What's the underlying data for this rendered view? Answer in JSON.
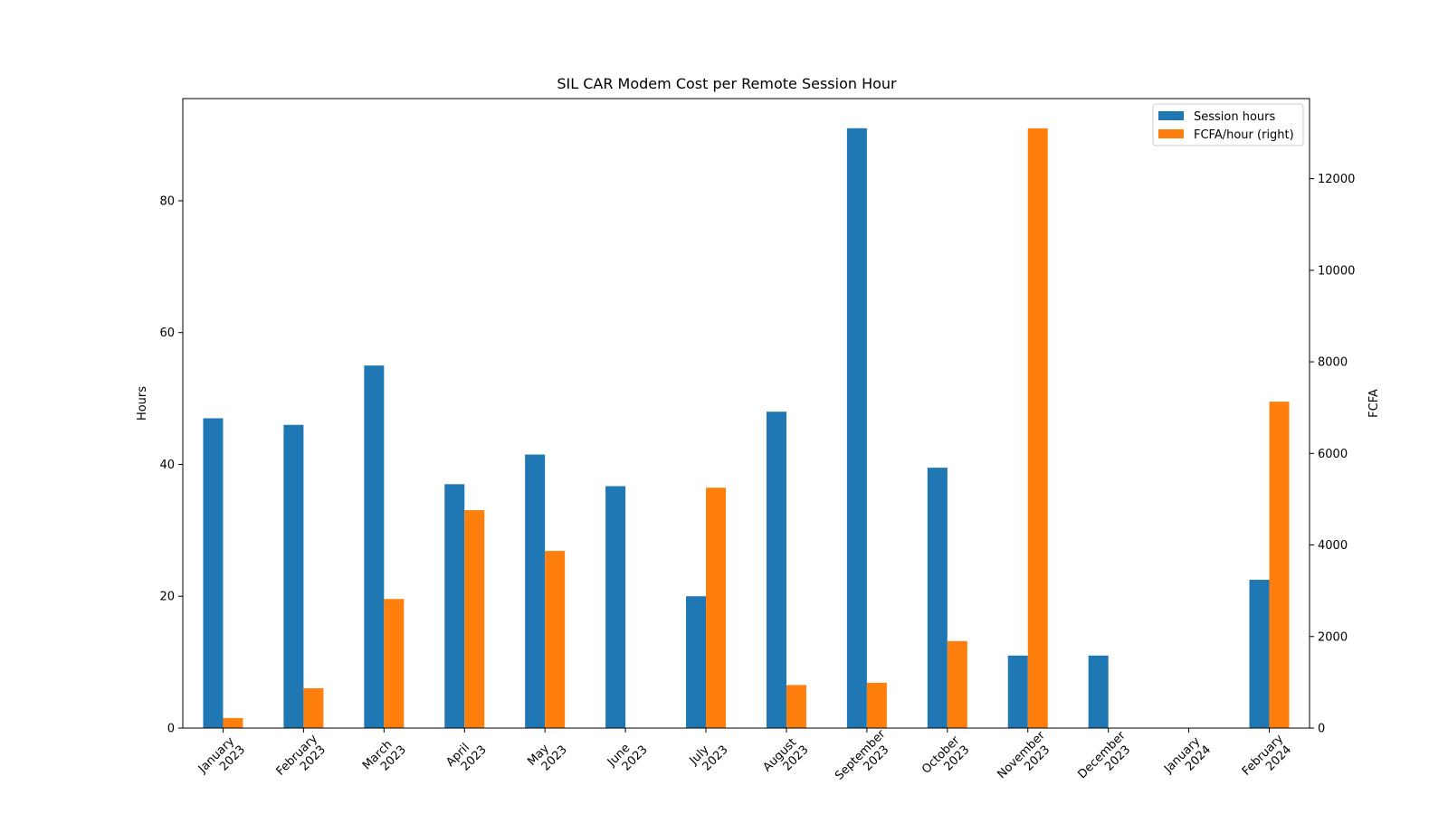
{
  "chart_data": {
    "type": "bar",
    "title": "SIL CAR Modem Cost per Remote Session Hour",
    "xlabel": "",
    "ylabel": "Hours",
    "y2label": "FCFA",
    "categories": [
      [
        "January",
        "2023"
      ],
      [
        "February",
        "2023"
      ],
      [
        "March",
        "2023"
      ],
      [
        "April",
        "2023"
      ],
      [
        "May",
        "2023"
      ],
      [
        "June",
        "2023"
      ],
      [
        "July",
        "2023"
      ],
      [
        "August",
        "2023"
      ],
      [
        "September",
        "2023"
      ],
      [
        "October",
        "2023"
      ],
      [
        "November",
        "2023"
      ],
      [
        "December",
        "2023"
      ],
      [
        "January",
        "2024"
      ],
      [
        "February",
        "2024"
      ]
    ],
    "ylim": [
      0,
      95.5
    ],
    "y2lim": [
      0,
      13750
    ],
    "yticks": [
      0,
      20,
      40,
      60,
      80
    ],
    "y2ticks": [
      0,
      2000,
      4000,
      6000,
      8000,
      10000,
      12000
    ],
    "series": [
      {
        "name": "Session hours",
        "axis": "left",
        "color": "#1f77b4",
        "values": [
          47.0,
          46.0,
          55.0,
          37.0,
          41.5,
          36.7,
          20.0,
          48.0,
          91.0,
          39.5,
          11.0,
          11.0,
          0,
          22.5
        ]
      },
      {
        "name": "FCFA/hour (right)",
        "axis": "right",
        "color": "#ff7f0e",
        "values": [
          220,
          870,
          2820,
          4760,
          3870,
          0,
          5250,
          940,
          990,
          1900,
          13100,
          0,
          0,
          7130
        ]
      }
    ],
    "legend_position": "top-right",
    "grid": false
  }
}
